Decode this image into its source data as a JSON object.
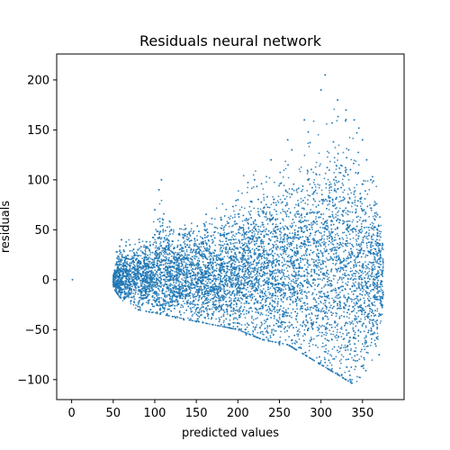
{
  "chart_data": {
    "type": "scatter",
    "title": "Residuals neural network",
    "xlabel": "predicted values",
    "ylabel": "residuals",
    "xlim": [
      -18,
      400
    ],
    "ylim": [
      -120,
      226
    ],
    "xticks": [
      0,
      50,
      100,
      150,
      200,
      250,
      300,
      350
    ],
    "yticks": [
      -100,
      -50,
      0,
      50,
      100,
      150,
      200
    ],
    "grid": false,
    "legend": "none",
    "point_color": "#1f77b4",
    "series": [
      {
        "name": "residuals",
        "points": [
          [
            1,
            0
          ],
          [
            50,
            -5
          ],
          [
            55,
            8
          ],
          [
            60,
            -10
          ],
          [
            60,
            40
          ],
          [
            65,
            -18
          ],
          [
            70,
            35
          ],
          [
            75,
            -22
          ],
          [
            80,
            30
          ],
          [
            85,
            -25
          ],
          [
            90,
            38
          ],
          [
            95,
            -30
          ],
          [
            100,
            45
          ],
          [
            100,
            70
          ],
          [
            105,
            90
          ],
          [
            108,
            100
          ],
          [
            110,
            60
          ],
          [
            115,
            -35
          ],
          [
            120,
            50
          ],
          [
            125,
            -38
          ],
          [
            130,
            45
          ],
          [
            135,
            -40
          ],
          [
            140,
            40
          ],
          [
            150,
            -42
          ],
          [
            160,
            50
          ],
          [
            170,
            -45
          ],
          [
            180,
            60
          ],
          [
            190,
            -48
          ],
          [
            200,
            80
          ],
          [
            210,
            -55
          ],
          [
            220,
            100
          ],
          [
            230,
            -60
          ],
          [
            240,
            120
          ],
          [
            250,
            -65
          ],
          [
            260,
            140
          ],
          [
            265,
            130
          ],
          [
            270,
            -70
          ],
          [
            280,
            160
          ],
          [
            290,
            -80
          ],
          [
            300,
            190
          ],
          [
            305,
            205
          ],
          [
            310,
            -90
          ],
          [
            320,
            180
          ],
          [
            325,
            -95
          ],
          [
            330,
            170
          ],
          [
            335,
            -100
          ],
          [
            340,
            160
          ],
          [
            350,
            140
          ],
          [
            355,
            120
          ],
          [
            360,
            100
          ],
          [
            365,
            60
          ],
          [
            370,
            30
          ],
          [
            375,
            -15
          ],
          [
            370,
            -75
          ]
        ],
        "envelope": {
          "lower": [
            [
              50,
              -8
            ],
            [
              60,
              -20
            ],
            [
              80,
              -30
            ],
            [
              110,
              -35
            ],
            [
              140,
              -40
            ],
            [
              170,
              -45
            ],
            [
              200,
              -50
            ],
            [
              230,
              -60
            ],
            [
              260,
              -65
            ],
            [
              290,
              -80
            ],
            [
              320,
              -95
            ],
            [
              340,
              -105
            ],
            [
              360,
              -85
            ],
            [
              375,
              -40
            ]
          ],
          "upper": [
            [
              50,
              5
            ],
            [
              55,
              42
            ],
            [
              70,
              42
            ],
            [
              90,
              45
            ],
            [
              100,
              60
            ],
            [
              108,
              102
            ],
            [
              115,
              85
            ],
            [
              125,
              55
            ],
            [
              135,
              62
            ],
            [
              150,
              70
            ],
            [
              170,
              70
            ],
            [
              190,
              90
            ],
            [
              210,
              110
            ],
            [
              220,
              125
            ],
            [
              240,
              120
            ],
            [
              250,
              130
            ],
            [
              260,
              160
            ],
            [
              270,
              150
            ],
            [
              285,
              170
            ],
            [
              300,
              190
            ],
            [
              310,
              210
            ],
            [
              320,
              200
            ],
            [
              335,
              185
            ],
            [
              350,
              150
            ],
            [
              360,
              120
            ],
            [
              370,
              100
            ],
            [
              375,
              40
            ]
          ]
        }
      }
    ]
  }
}
